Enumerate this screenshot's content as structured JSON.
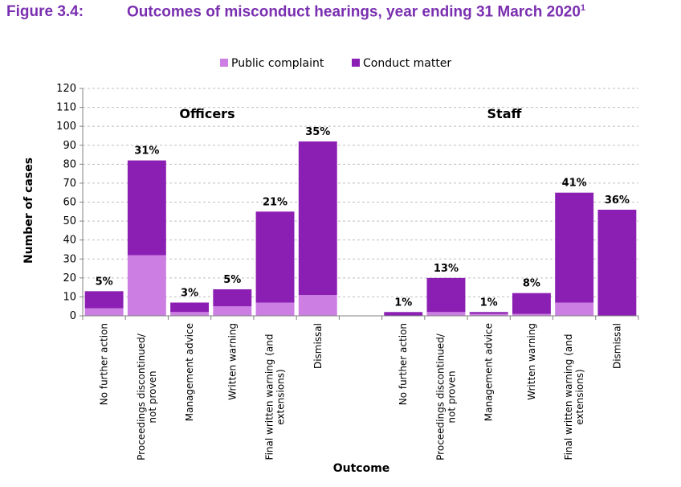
{
  "figure": {
    "label": "Figure 3.4:",
    "title": "Outcomes of misconduct hearings, year ending 31 March 2020",
    "footnote_mark": "1"
  },
  "colors": {
    "public_complaint": "#cc7ee3",
    "conduct_matter": "#8c1fb3",
    "title": "#7a2fb0",
    "grid": "#bfbfbf"
  },
  "chart_data": {
    "type": "bar",
    "stacked": true,
    "ylabel": "Number of cases",
    "xlabel": "Outcome",
    "ylim": [
      0,
      120
    ],
    "yticks": [
      0,
      10,
      20,
      30,
      40,
      50,
      60,
      70,
      80,
      90,
      100,
      110,
      120
    ],
    "legend": [
      "Public complaint",
      "Conduct matter"
    ],
    "legend_position": "top",
    "groups": [
      {
        "name": "Officers",
        "bars": [
          {
            "category": "No further action",
            "public_complaint": 4,
            "conduct_matter": 9,
            "label": "5%"
          },
          {
            "category": "Proceedings discontinued/ not proven",
            "public_complaint": 32,
            "conduct_matter": 50,
            "label": "31%"
          },
          {
            "category": "Management advice",
            "public_complaint": 2,
            "conduct_matter": 5,
            "label": "3%"
          },
          {
            "category": "Written warning",
            "public_complaint": 5,
            "conduct_matter": 9,
            "label": "5%"
          },
          {
            "category": "Final written warning (and extensions)",
            "public_complaint": 7,
            "conduct_matter": 48,
            "label": "21%"
          },
          {
            "category": "Dismissal",
            "public_complaint": 11,
            "conduct_matter": 81,
            "label": "35%"
          }
        ]
      },
      {
        "name": "Staff",
        "bars": [
          {
            "category": "No further action",
            "public_complaint": 0,
            "conduct_matter": 2,
            "label": "1%"
          },
          {
            "category": "Proceedings discontinued/ not proven",
            "public_complaint": 2,
            "conduct_matter": 18,
            "label": "13%"
          },
          {
            "category": "Management advice",
            "public_complaint": 1,
            "conduct_matter": 1,
            "label": "1%"
          },
          {
            "category": "Written warning",
            "public_complaint": 1,
            "conduct_matter": 11,
            "label": "8%"
          },
          {
            "category": "Final written warning (and extensions)",
            "public_complaint": 7,
            "conduct_matter": 58,
            "label": "41%"
          },
          {
            "category": "Dismissal",
            "public_complaint": 0,
            "conduct_matter": 56,
            "label": "36%"
          }
        ]
      }
    ]
  }
}
